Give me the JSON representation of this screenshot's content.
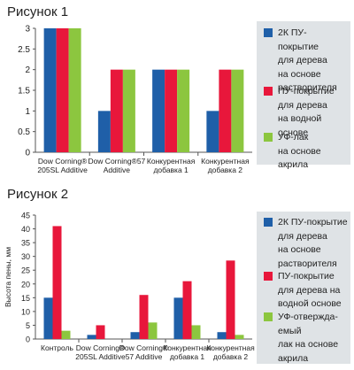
{
  "colors": {
    "blue": "#1f5fa8",
    "red": "#e8173b",
    "green": "#8cc63f"
  },
  "figure1": {
    "title": "Рисунок 1"
  },
  "figure2": {
    "title": "Рисунок 2"
  },
  "chart_data": [
    {
      "type": "bar",
      "title": "Рисунок 1",
      "categories": [
        "Dow Corning®\n205SL Additive",
        "Dow Corning®57\nAdditive",
        "Конкурентная\nдобавка 1",
        "Конкурентная\nдобавка 2"
      ],
      "series": [
        {
          "name": "2К ПУ-покрытие для дерева на основе растворителя",
          "color": "#1f5fa8",
          "values": [
            3,
            1,
            2,
            1
          ]
        },
        {
          "name": "ПУ-покрытие для дерева на водной основе",
          "color": "#e8173b",
          "values": [
            3,
            2,
            2,
            2
          ]
        },
        {
          "name": "УФ-лак на основе акрила",
          "color": "#8cc63f",
          "values": [
            3,
            2,
            2,
            2
          ]
        }
      ],
      "ylim": [
        0,
        3
      ],
      "yticks": [
        "0",
        "0.5",
        "1",
        "1.5",
        "2",
        "2.5",
        "3"
      ],
      "xlabel": "",
      "ylabel": "",
      "legend_labels": [
        "2К ПУ-\nпокрытие\nдля дерева\nна основе\nрастворителя",
        "ПУ-покрытие\nдля дерева\nна водной\nоснове",
        "УФ-лак\nна основе\nакрила"
      ],
      "grid": false,
      "legend_position": "right"
    },
    {
      "type": "bar",
      "title": "Рисунок 2",
      "categories": [
        "Контроль",
        "Dow Corning®\n205SL Additive",
        "Dow Corning®\n57 Additive",
        "Конкурентная\nдобавка 1",
        "Конкурентная\nдобавка 2"
      ],
      "series": [
        {
          "name": "2К ПУ-покрытие для дерева на основе растворителя",
          "color": "#1f5fa8",
          "values": [
            15,
            1.5,
            2.5,
            15,
            2.5
          ]
        },
        {
          "name": "ПУ-покрытие для дерева на водной основе",
          "color": "#e8173b",
          "values": [
            41,
            5,
            16,
            21,
            28.5
          ]
        },
        {
          "name": "УФ-отверждаемый лак на основе акрила",
          "color": "#8cc63f",
          "values": [
            3,
            0,
            6,
            5,
            1.5
          ]
        }
      ],
      "ylim": [
        0,
        45
      ],
      "yticks": [
        "0",
        "5",
        "10",
        "15",
        "20",
        "25",
        "30",
        "35",
        "40",
        "45"
      ],
      "xlabel": "",
      "ylabel": "Высота пены, мм",
      "legend_labels": [
        "2К ПУ-покрытие\nдля дерева\nна основе\nрастворителя",
        "ПУ-покрытие\nдля дерева на\nводной основе",
        "УФ-отвержда-\nемый\nлак на основе\nакрила"
      ],
      "grid": false,
      "legend_position": "right"
    }
  ]
}
